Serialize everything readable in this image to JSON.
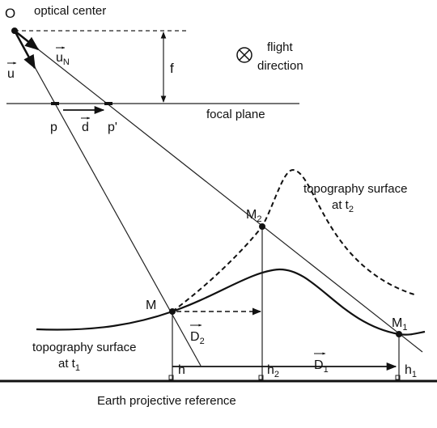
{
  "labels": {
    "origin": "O",
    "optical_center": "optical center",
    "flight": "flight",
    "direction": "direction",
    "f": "f",
    "focal_plane": "focal plane",
    "p": "p",
    "p_prime": "p'",
    "d": "d",
    "u": "u",
    "u_n": {
      "text": "u",
      "sub": "N"
    },
    "m": "M",
    "m1": {
      "text": "M",
      "sub": "1"
    },
    "m2": {
      "text": "M",
      "sub": "2"
    },
    "d1": {
      "text": "D",
      "sub": "1"
    },
    "d2": {
      "text": "D",
      "sub": "2"
    },
    "h": "h",
    "h1": {
      "text": "h",
      "sub": "1"
    },
    "h2": {
      "text": "h",
      "sub": "2"
    },
    "topo1": {
      "line1": "topography surface",
      "line2": "at t",
      "sub": "1"
    },
    "topo2": {
      "line1": "topography surface",
      "line2": "at t",
      "sub": "2"
    },
    "earth": "Earth projective reference"
  }
}
